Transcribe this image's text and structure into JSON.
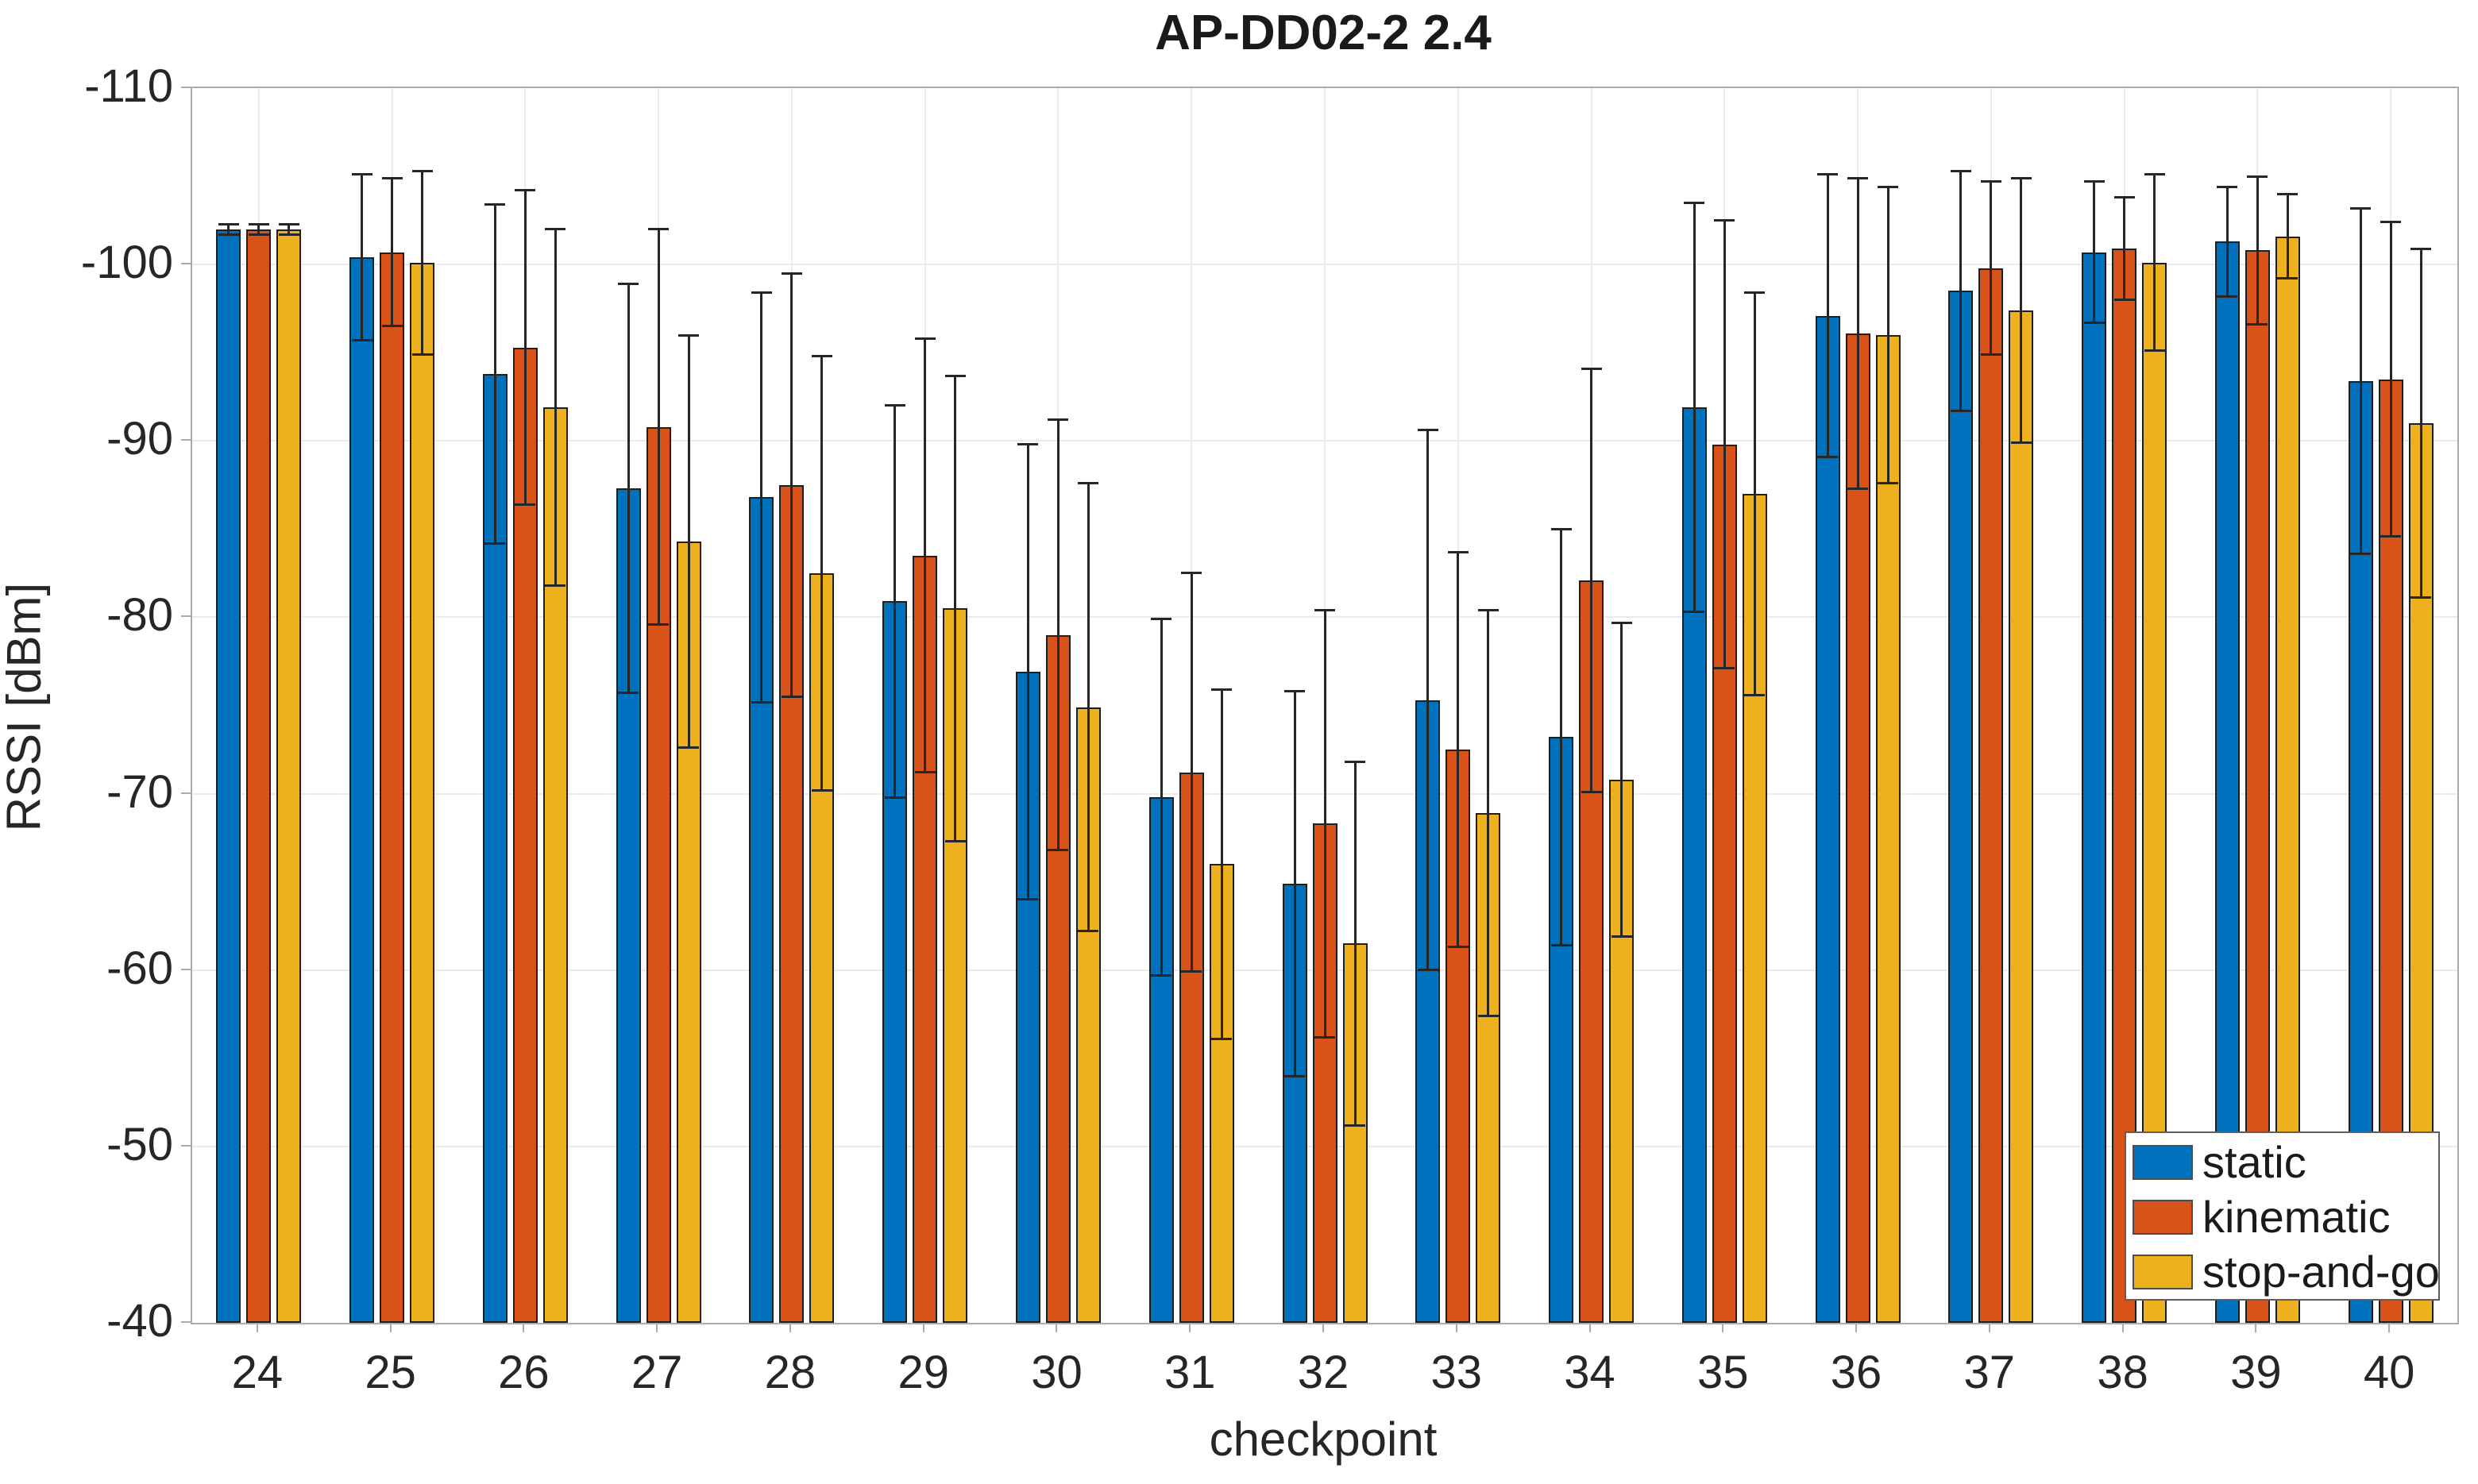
{
  "chart_data": {
    "type": "bar",
    "title": "AP-DD02-2 2.4",
    "xlabel": "checkpoint",
    "ylabel": "RSSI [dBm]",
    "categories": [
      "24",
      "25",
      "26",
      "27",
      "28",
      "29",
      "30",
      "31",
      "32",
      "33",
      "34",
      "35",
      "36",
      "37",
      "38",
      "39",
      "40"
    ],
    "y_axis": {
      "tick_labels": [
        "-110",
        "-100",
        "-90",
        "-80",
        "-70",
        "-60",
        "-50",
        "-40"
      ],
      "tick_values": [
        -110,
        -100,
        -90,
        -80,
        -70,
        -60,
        -50,
        -40
      ],
      "top_value": -110,
      "bottom_value": -40,
      "reversed": true
    },
    "grid": true,
    "legend_position": "lower-right",
    "error_bars": true,
    "series": [
      {
        "name": "static",
        "color": "#0072BD",
        "values": [
          -102.0,
          -100.4,
          -93.8,
          -87.3,
          -86.8,
          -80.9,
          -76.9,
          -69.8,
          -64.9,
          -75.3,
          -73.2,
          -91.9,
          -97.1,
          -98.5,
          -100.7,
          -101.3,
          -93.4
        ],
        "errors": [
          0.3,
          4.7,
          9.6,
          11.6,
          11.6,
          11.1,
          12.9,
          10.1,
          10.9,
          15.3,
          11.8,
          11.6,
          8.0,
          6.8,
          4.0,
          3.1,
          9.8
        ]
      },
      {
        "name": "kinematic",
        "color": "#D95319",
        "values": [
          -102.0,
          -100.7,
          -95.3,
          -90.8,
          -87.5,
          -83.5,
          -79.0,
          -71.2,
          -68.3,
          -72.5,
          -82.1,
          -89.8,
          -96.1,
          -99.8,
          -100.9,
          -100.8,
          -93.5
        ],
        "errors": [
          0.3,
          4.2,
          8.9,
          11.2,
          12.0,
          12.3,
          12.2,
          11.3,
          12.1,
          11.2,
          12.0,
          12.7,
          8.8,
          4.9,
          2.9,
          4.2,
          8.9
        ]
      },
      {
        "name": "stop-and-go",
        "color": "#EDB120",
        "values": [
          -102.0,
          -100.1,
          -91.9,
          -84.3,
          -82.5,
          -80.5,
          -74.9,
          -66.0,
          -61.5,
          -68.9,
          -70.8,
          -87.0,
          -96.0,
          -97.4,
          -100.1,
          -101.6,
          -91.0
        ],
        "errors": [
          0.3,
          5.2,
          10.1,
          11.7,
          12.3,
          13.2,
          12.7,
          9.9,
          10.3,
          11.5,
          8.9,
          11.4,
          8.4,
          7.5,
          5.0,
          2.4,
          9.9
        ]
      }
    ]
  }
}
